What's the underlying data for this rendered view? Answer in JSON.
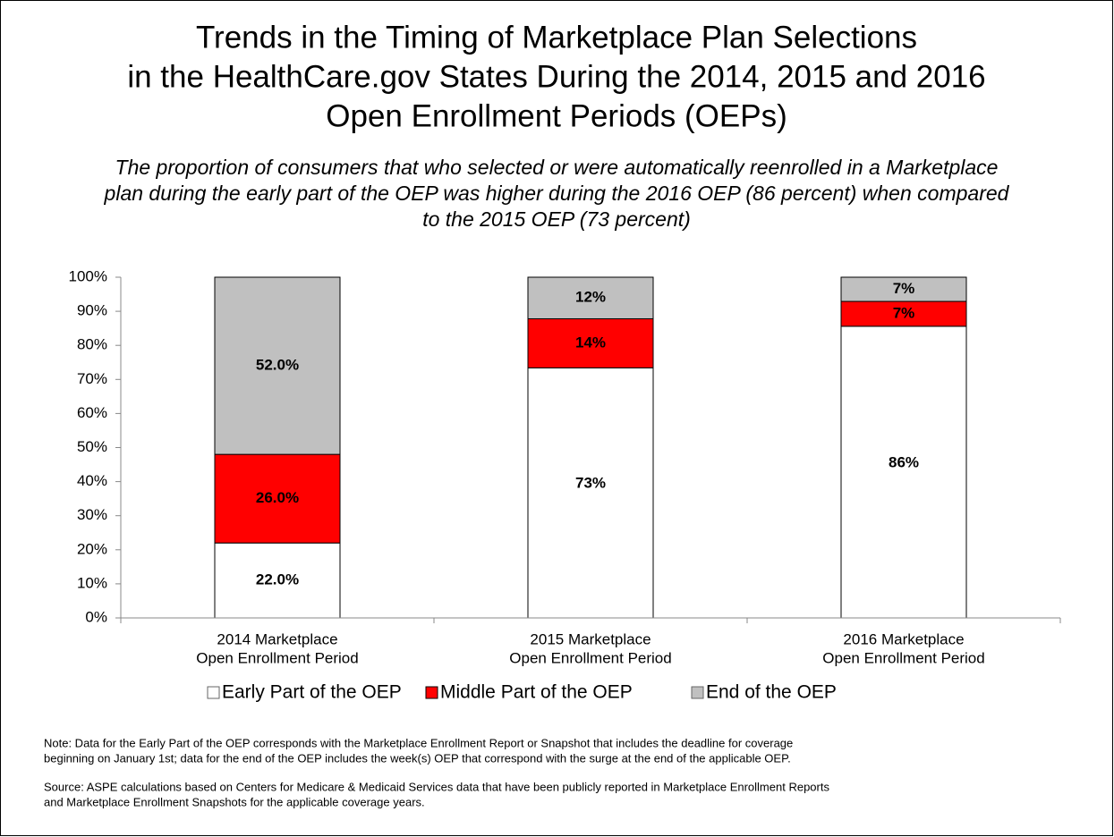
{
  "chart_data": {
    "type": "stacked_bar",
    "title": [
      "Trends in the Timing of Marketplace Plan Selections",
      "in the HealthCare.gov States During the 2014, 2015 and 2016",
      "Open Enrollment Periods (OEPs)"
    ],
    "subtitle": [
      "The proportion of consumers that who selected or were automatically reenrolled in a Marketplace",
      "plan during the early part of the OEP was higher during the 2016 OEP (86 percent) when compared",
      "to the 2015 OEP (73 percent)"
    ],
    "categories": [
      [
        "2014 Marketplace",
        "Open Enrollment Period"
      ],
      [
        "2015 Marketplace",
        "Open Enrollment Period"
      ],
      [
        "2016 Marketplace",
        "Open Enrollment Period"
      ]
    ],
    "series": [
      {
        "name": "Early Part of the OEP",
        "color": "#ffffff",
        "values": [
          22,
          73.4,
          85.6
        ],
        "value_labels": [
          "22.0%",
          "73%",
          "86%"
        ]
      },
      {
        "name": "Middle Part of the OEP",
        "color": "#ff0000",
        "values": [
          26,
          14.4,
          7.3
        ],
        "value_labels": [
          "26.0%",
          "14%",
          "7%"
        ]
      },
      {
        "name": "End of the OEP",
        "color": "#c0c0c0",
        "values": [
          52,
          12.2,
          7.1
        ],
        "value_labels": [
          "52.0%",
          "12%",
          "7%"
        ]
      }
    ],
    "ylim": [
      0,
      100
    ],
    "yticks": [
      {
        "value": 0,
        "label": "0%"
      },
      {
        "value": 10,
        "label": "10%"
      },
      {
        "value": 20,
        "label": "20%"
      },
      {
        "value": 30,
        "label": "30%"
      },
      {
        "value": 40,
        "label": "40%"
      },
      {
        "value": 50,
        "label": "50%"
      },
      {
        "value": 60,
        "label": "60%"
      },
      {
        "value": 70,
        "label": "70%"
      },
      {
        "value": 80,
        "label": "80%"
      },
      {
        "value": 90,
        "label": "90%"
      },
      {
        "value": 100,
        "label": "100%"
      }
    ],
    "legend": "bottom",
    "notes": [
      [
        "Note:  Data for the Early Part of the OEP corresponds with the Marketplace Enrollment Report or Snapshot that includes the deadline for coverage",
        "beginning on January 1st; data for the end of the OEP includes the week(s) OEP that correspond with the surge at the end of the applicable OEP."
      ],
      [
        "Source:  ASPE calculations based on Centers for Medicare & Medicaid Services data that have been publicly reported in Marketplace Enrollment Reports",
        "and Marketplace Enrollment Snapshots for the applicable coverage years."
      ]
    ]
  }
}
